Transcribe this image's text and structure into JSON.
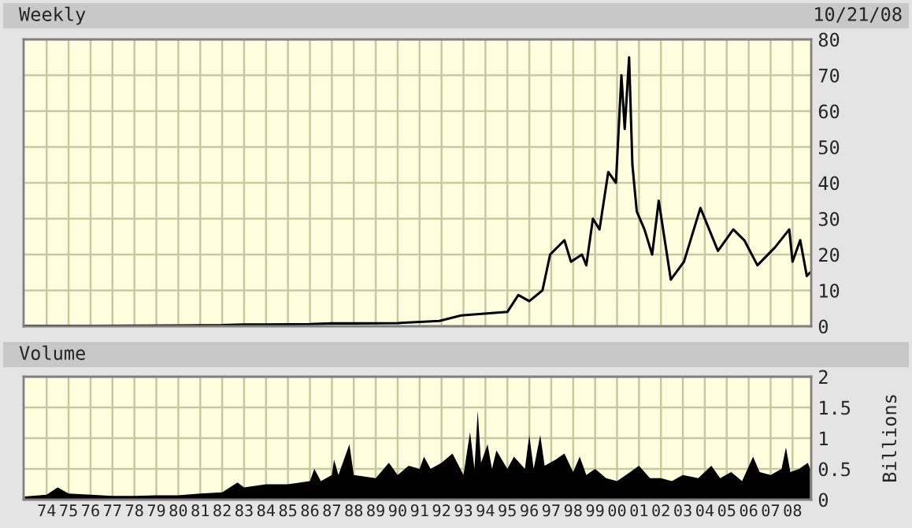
{
  "chart_data": [
    {
      "type": "line",
      "title": "Weekly",
      "annotations": [
        "10/21/08"
      ],
      "grid": true,
      "tick_labels": "y",
      "xlim": [
        1972.95,
        2008.85
      ],
      "xticks": [
        {
          "value": 1974,
          "label": null
        },
        {
          "value": 1975,
          "label": null
        },
        {
          "value": 1976,
          "label": null
        },
        {
          "value": 1977,
          "label": null
        },
        {
          "value": 1978,
          "label": null
        },
        {
          "value": 1979,
          "label": null
        },
        {
          "value": 1980,
          "label": null
        },
        {
          "value": 1981,
          "label": null
        },
        {
          "value": 1982,
          "label": null
        },
        {
          "value": 1983,
          "label": null
        },
        {
          "value": 1984,
          "label": null
        },
        {
          "value": 1985,
          "label": null
        },
        {
          "value": 1986,
          "label": null
        },
        {
          "value": 1987,
          "label": null
        },
        {
          "value": 1988,
          "label": null
        },
        {
          "value": 1989,
          "label": null
        },
        {
          "value": 1990,
          "label": null
        },
        {
          "value": 1991,
          "label": null
        },
        {
          "value": 1992,
          "label": null
        },
        {
          "value": 1993,
          "label": null
        },
        {
          "value": 1994,
          "label": null
        },
        {
          "value": 1995,
          "label": null
        },
        {
          "value": 1996,
          "label": null
        },
        {
          "value": 1997,
          "label": null
        },
        {
          "value": 1998,
          "label": null
        },
        {
          "value": 1999,
          "label": null
        },
        {
          "value": 2000,
          "label": null
        },
        {
          "value": 2001,
          "label": null
        },
        {
          "value": 2002,
          "label": null
        },
        {
          "value": 2003,
          "label": null
        },
        {
          "value": 2004,
          "label": null
        },
        {
          "value": 2005,
          "label": null
        },
        {
          "value": 2006,
          "label": null
        },
        {
          "value": 2007,
          "label": null
        },
        {
          "value": 2008,
          "label": null
        }
      ],
      "ylim": [
        0,
        80
      ],
      "yticks": [
        0,
        10,
        20,
        30,
        40,
        50,
        60,
        70,
        80
      ],
      "series": [
        {
          "color": "#000000",
          "x": [
            1973.0,
            1976.0,
            1980.0,
            1982.0,
            1983.0,
            1984.0,
            1986.0,
            1987.0,
            1988.0,
            1990.0,
            1991.0,
            1991.9,
            1992.9,
            1995.0,
            1995.5,
            1996.0,
            1996.6,
            1996.95,
            1997.6,
            1997.9,
            1998.4,
            1998.6,
            1998.9,
            1999.2,
            1999.6,
            1999.95,
            2000.2,
            2000.35,
            2000.55,
            2000.7,
            2000.9,
            2001.25,
            2001.6,
            2001.9,
            2002.45,
            2003.05,
            2003.8,
            2004.6,
            2005.3,
            2005.8,
            2006.4,
            2007.2,
            2007.85,
            2008.0,
            2008.35,
            2008.65,
            2008.8
          ],
          "values": [
            0.1,
            0.1,
            0.2,
            0.3,
            0.5,
            0.5,
            0.6,
            0.8,
            0.8,
            0.9,
            1.2,
            1.5,
            3,
            4,
            8.7,
            7,
            10,
            20,
            24,
            18,
            20,
            17,
            30,
            27,
            43,
            40,
            70,
            55,
            75,
            45,
            32,
            27,
            20,
            35,
            13,
            18,
            33,
            21,
            27,
            24,
            17,
            22,
            27,
            18,
            24,
            14,
            15
          ]
        }
      ]
    },
    {
      "type": "area",
      "title": "Volume",
      "ylabel": "Billions",
      "grid": true,
      "xlim": [
        1972.95,
        2008.85
      ],
      "xticks": [
        {
          "value": 1974,
          "label": "74"
        },
        {
          "value": 1975,
          "label": "75"
        },
        {
          "value": 1976,
          "label": "76"
        },
        {
          "value": 1977,
          "label": "77"
        },
        {
          "value": 1978,
          "label": "78"
        },
        {
          "value": 1979,
          "label": "79"
        },
        {
          "value": 1980,
          "label": "80"
        },
        {
          "value": 1981,
          "label": "81"
        },
        {
          "value": 1982,
          "label": "82"
        },
        {
          "value": 1983,
          "label": "83"
        },
        {
          "value": 1984,
          "label": "84"
        },
        {
          "value": 1985,
          "label": "85"
        },
        {
          "value": 1986,
          "label": "86"
        },
        {
          "value": 1987,
          "label": "87"
        },
        {
          "value": 1988,
          "label": "88"
        },
        {
          "value": 1989,
          "label": "89"
        },
        {
          "value": 1990,
          "label": "90"
        },
        {
          "value": 1991,
          "label": "91"
        },
        {
          "value": 1992,
          "label": "92"
        },
        {
          "value": 1993,
          "label": "93"
        },
        {
          "value": 1994,
          "label": "94"
        },
        {
          "value": 1995,
          "label": "95"
        },
        {
          "value": 1996,
          "label": "96"
        },
        {
          "value": 1997,
          "label": "97"
        },
        {
          "value": 1998,
          "label": "98"
        },
        {
          "value": 1999,
          "label": "99"
        },
        {
          "value": 2000,
          "label": "00"
        },
        {
          "value": 2001,
          "label": "01"
        },
        {
          "value": 2002,
          "label": "02"
        },
        {
          "value": 2003,
          "label": "03"
        },
        {
          "value": 2004,
          "label": "04"
        },
        {
          "value": 2005,
          "label": "05"
        },
        {
          "value": 2006,
          "label": "06"
        },
        {
          "value": 2007,
          "label": "07"
        },
        {
          "value": 2008,
          "label": "08"
        }
      ],
      "ylim": [
        0,
        2
      ],
      "yticks": [
        0,
        0.5,
        1,
        1.5,
        2
      ],
      "series": [
        {
          "color": "#000000",
          "x": [
            1973.0,
            1974.0,
            1974.5,
            1975.0,
            1976.0,
            1977.0,
            1978.0,
            1979.0,
            1980.0,
            1981.0,
            1982.0,
            1982.7,
            1983.0,
            1984.0,
            1985.0,
            1986.0,
            1986.2,
            1986.5,
            1987.0,
            1987.1,
            1987.3,
            1987.8,
            1988.0,
            1989.0,
            1989.6,
            1990.0,
            1990.5,
            1991.0,
            1991.2,
            1991.5,
            1992.0,
            1992.5,
            1993.0,
            1993.3,
            1993.5,
            1993.65,
            1993.8,
            1994.1,
            1994.3,
            1994.5,
            1995.0,
            1995.3,
            1995.8,
            1996.0,
            1996.2,
            1996.5,
            1996.7,
            1997.2,
            1997.6,
            1998.0,
            1998.3,
            1998.6,
            1999.0,
            1999.5,
            2000.0,
            2000.6,
            2001.0,
            2001.5,
            2002.0,
            2002.5,
            2003.0,
            2003.7,
            2004.3,
            2004.7,
            2005.2,
            2005.7,
            2006.2,
            2006.5,
            2007.0,
            2007.5,
            2007.7,
            2007.9,
            2008.3,
            2008.7,
            2008.8
          ],
          "values": [
            0.05,
            0.08,
            0.2,
            0.1,
            0.08,
            0.06,
            0.06,
            0.07,
            0.07,
            0.1,
            0.12,
            0.28,
            0.2,
            0.25,
            0.25,
            0.3,
            0.5,
            0.3,
            0.4,
            0.65,
            0.4,
            0.9,
            0.4,
            0.35,
            0.6,
            0.4,
            0.55,
            0.5,
            0.7,
            0.5,
            0.6,
            0.75,
            0.4,
            1.1,
            0.5,
            1.45,
            0.6,
            0.9,
            0.5,
            0.8,
            0.5,
            0.7,
            0.5,
            1.05,
            0.5,
            1.05,
            0.55,
            0.65,
            0.75,
            0.45,
            0.7,
            0.4,
            0.5,
            0.35,
            0.3,
            0.45,
            0.55,
            0.35,
            0.35,
            0.3,
            0.4,
            0.35,
            0.55,
            0.35,
            0.45,
            0.3,
            0.7,
            0.45,
            0.4,
            0.5,
            0.85,
            0.45,
            0.5,
            0.6,
            0.5
          ]
        }
      ]
    }
  ]
}
